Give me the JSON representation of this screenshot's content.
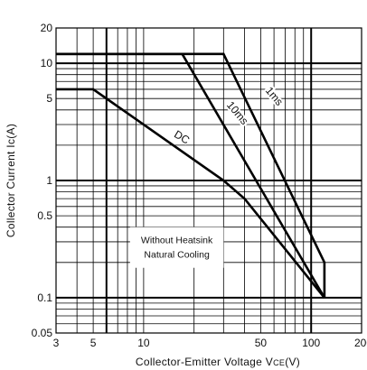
{
  "chart_data": {
    "type": "line",
    "title": "",
    "xlabel": "Collector-Emitter Voltage V",
    "xlabel_sub": "CE",
    "xlabel_unit": "(V)",
    "ylabel": "Collector Current Ic(A)",
    "x_scale": "log",
    "y_scale": "log",
    "xlim": [
      3,
      200
    ],
    "ylim": [
      0.05,
      20
    ],
    "grid": true,
    "x_ticks": [
      3,
      5,
      10,
      50,
      100,
      200
    ],
    "x_tick_labels": [
      "3",
      "5",
      "10",
      "50",
      "100",
      "200"
    ],
    "y_ticks": [
      0.05,
      0.1,
      0.5,
      1,
      5,
      10,
      20
    ],
    "y_tick_labels": [
      "0.05",
      "0.1",
      "0.5",
      "1",
      "5",
      "10",
      "20"
    ],
    "annotation_lines": [
      "Without Heatsink",
      "Natural Cooling"
    ],
    "series": [
      {
        "name": "DC",
        "x": [
          3,
          5,
          30,
          40,
          120
        ],
        "y": [
          6,
          6,
          1,
          0.7,
          0.1
        ]
      },
      {
        "name": "10ms",
        "x": [
          3,
          17,
          120
        ],
        "y": [
          12,
          12,
          0.1
        ]
      },
      {
        "name": "1ms",
        "x": [
          3,
          30,
          120,
          120
        ],
        "y": [
          12,
          12,
          0.2,
          0.1
        ]
      }
    ]
  }
}
